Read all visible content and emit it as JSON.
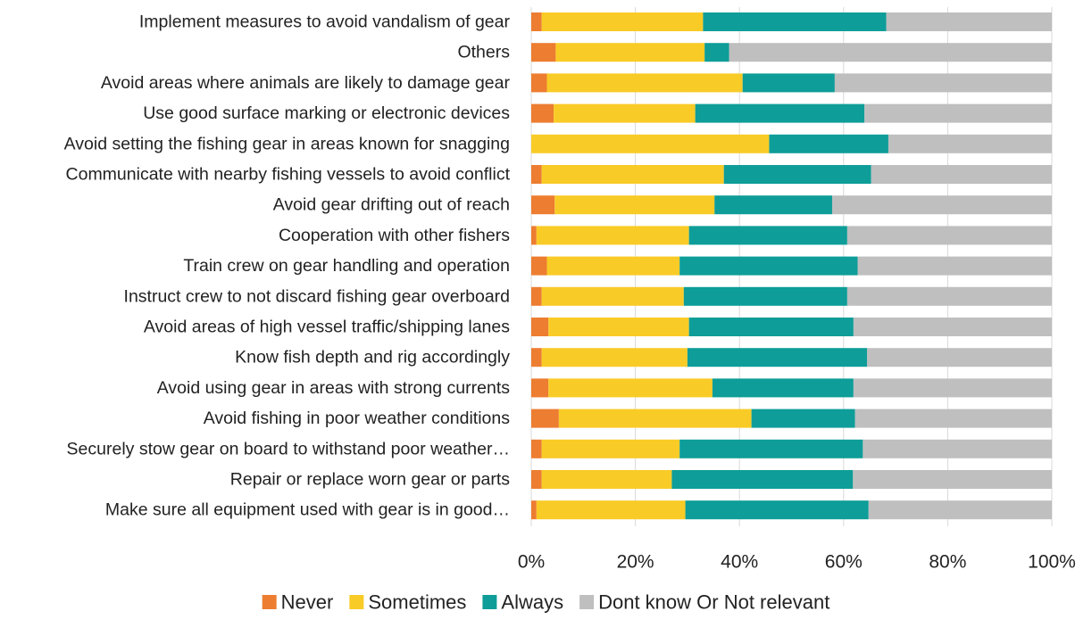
{
  "chart_data": {
    "type": "bar",
    "orientation": "horizontal",
    "stacked": true,
    "percent_stacked": true,
    "title": "",
    "xlabel": "",
    "ylabel": "",
    "xlim": [
      0,
      100
    ],
    "x_ticks": [
      "0%",
      "20%",
      "40%",
      "60%",
      "80%",
      "100%"
    ],
    "grid": true,
    "legend_position": "bottom",
    "categories": [
      "Implement measures to avoid vandalism of gear",
      "Others",
      "Avoid areas where animals are likely to damage gear",
      "Use good surface marking or electronic devices",
      "Avoid setting the fishing gear in areas known for snagging",
      "Communicate with nearby fishing vessels to avoid conflict",
      "Avoid gear drifting out of reach",
      "Cooperation with other fishers",
      "Train crew on gear handling and operation",
      "Instruct crew to not discard fishing gear overboard",
      "Avoid areas of high vessel traffic/shipping lanes",
      "Know fish depth and rig accordingly",
      "Avoid using gear in areas with strong currents",
      "Avoid fishing in poor weather conditions",
      "Securely stow gear on board to withstand poor weather…",
      "Repair or replace worn gear or parts",
      "Make sure all equipment used with gear is in good…"
    ],
    "series": [
      {
        "name": "Never",
        "color": "#ED7D31",
        "values": [
          2,
          4.7,
          3,
          4.3,
          0,
          2,
          4.5,
          1,
          3,
          2,
          3.3,
          2,
          3.3,
          5.3,
          2,
          2,
          1
        ]
      },
      {
        "name": "Sometimes",
        "color": "#F9CB27",
        "values": [
          31,
          28.6,
          37.6,
          27.2,
          45.7,
          35,
          30.7,
          29.3,
          25.5,
          27.3,
          27,
          28,
          31.5,
          37,
          26.5,
          25,
          28.6
        ]
      },
      {
        "name": "Always",
        "color": "#0E9D98",
        "values": [
          35.2,
          4.7,
          17.7,
          32.5,
          22.9,
          28.3,
          22.6,
          30.4,
          34.2,
          31.4,
          31.6,
          34.5,
          27.1,
          19.9,
          35.2,
          34.8,
          35.2
        ]
      },
      {
        "name": "Dont know Or Not relevant",
        "color": "#BFBFBF",
        "values": [
          31.8,
          62,
          41.7,
          36,
          31.4,
          34.7,
          42.2,
          39.3,
          37.3,
          39.3,
          38.1,
          35.5,
          38.1,
          37.8,
          36.3,
          38.2,
          35.2
        ]
      }
    ]
  }
}
